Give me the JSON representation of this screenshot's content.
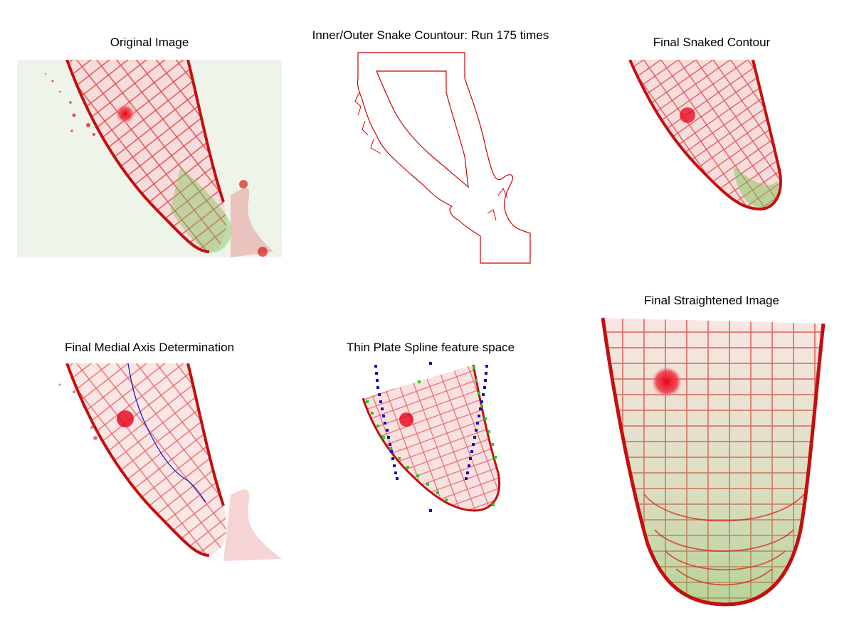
{
  "figure": {
    "panels": [
      {
        "id": "original",
        "title": "Original Image"
      },
      {
        "id": "snake",
        "title": "Inner/Outer Snake Countour: Run 175 times"
      },
      {
        "id": "snaked",
        "title": "Final Snaked Contour"
      },
      {
        "id": "medial",
        "title": "Final Medial Axis Determination"
      },
      {
        "id": "tps",
        "title": "Thin Plate Spline feature space"
      },
      {
        "id": "straight",
        "title": "Final Straightened Image"
      }
    ]
  },
  "colors": {
    "cell_wall": "#d81b1b",
    "tissue_fill": "#f7dcdc",
    "green_tint": "#7fc35a",
    "background_tint": "#eef4ea",
    "contour": "#cc0000",
    "medial_axis": "#1a1acc",
    "control_points": "#1010c0",
    "boundary_points": "#22cc22"
  }
}
